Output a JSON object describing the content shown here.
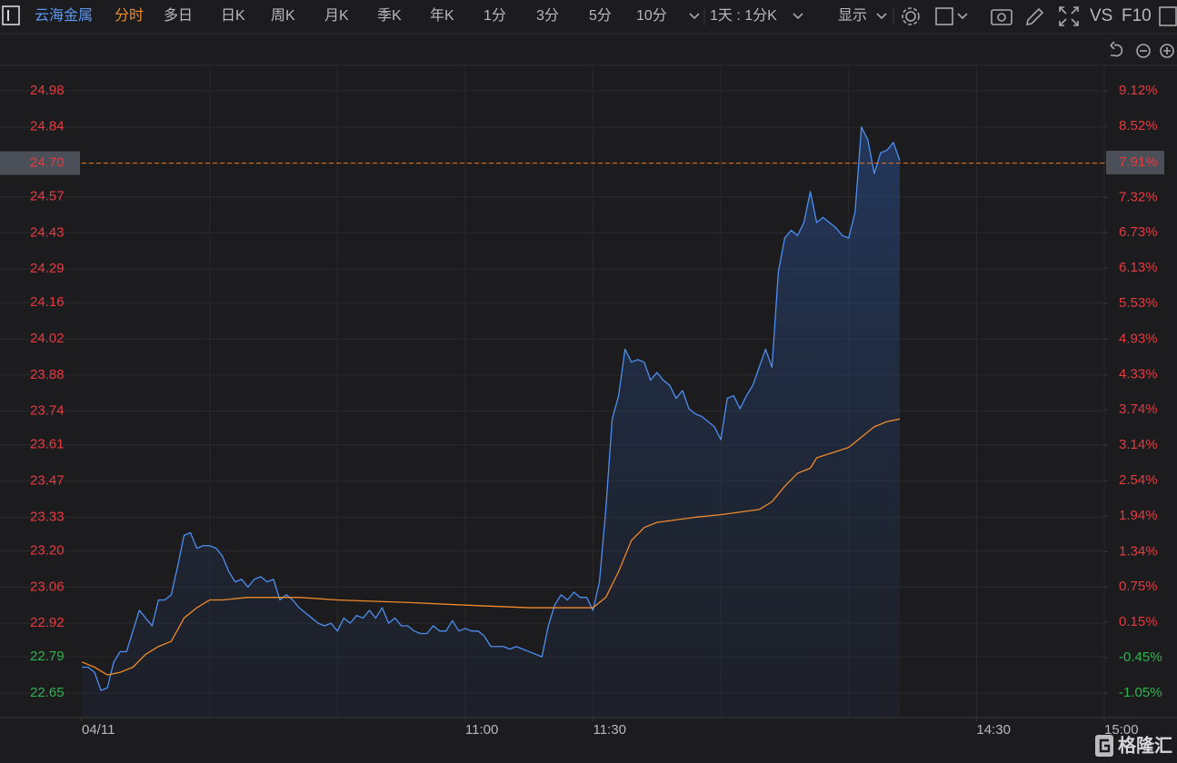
{
  "toolbar": {
    "stock": "云海金属",
    "tabs": [
      "分时",
      "多日",
      "日K",
      "周K",
      "月K",
      "季K",
      "年K",
      "1分",
      "3分",
      "5分",
      "10分"
    ],
    "period": "1天 : 1分K",
    "display": "显示",
    "vs": "VS",
    "f10": "F10"
  },
  "watermark": "格隆汇",
  "chart_data": {
    "type": "line",
    "xlim": [
      0,
      240
    ],
    "xticks": [
      {
        "value": 0,
        "label": "04/11"
      },
      {
        "value": 90,
        "label": "11:00"
      },
      {
        "value": 120,
        "label": "11:30"
      },
      {
        "value": 210,
        "label": "14:30"
      },
      {
        "value": 240,
        "label": "15:00"
      }
    ],
    "xgrid": [
      30,
      60,
      90,
      120,
      150,
      180,
      210,
      240
    ],
    "ylim": [
      22.555,
      25.078
    ],
    "yticks": [
      24.98,
      24.84,
      {
        "value": 24.7,
        "label": "24.70"
      },
      24.57,
      24.43,
      24.29,
      24.16,
      24.02,
      23.88,
      23.74,
      23.61,
      23.47,
      23.33,
      {
        "value": 23.2,
        "label": "23.20"
      },
      23.06,
      22.92,
      22.79,
      22.65
    ],
    "y2lim": [
      -1.46,
      9.55
    ],
    "y2ticks": [
      {
        "value": 9.12,
        "label": "9.12%"
      },
      {
        "value": 8.52,
        "label": "8.52%"
      },
      {
        "value": 7.91,
        "label": "7.91%"
      },
      {
        "value": 7.32,
        "label": "7.32%"
      },
      {
        "value": 6.73,
        "label": "6.73%"
      },
      {
        "value": 6.13,
        "label": "6.13%"
      },
      {
        "value": 5.53,
        "label": "5.53%"
      },
      {
        "value": 4.93,
        "label": "4.93%"
      },
      {
        "value": 4.33,
        "label": "4.33%"
      },
      {
        "value": 3.74,
        "label": "3.74%"
      },
      {
        "value": 3.14,
        "label": "3.14%"
      },
      {
        "value": 2.54,
        "label": "2.54%"
      },
      {
        "value": 1.94,
        "label": "1.94%"
      },
      {
        "value": 1.34,
        "label": "1.34%"
      },
      {
        "value": 0.75,
        "label": "0.75%"
      },
      {
        "value": 0.15,
        "label": "0.15%"
      },
      {
        "value": -0.45,
        "label": "-0.45%"
      },
      {
        "value": -1.05,
        "label": "-1.05%"
      }
    ],
    "up_color": "#e8393f",
    "down_color": "#2fb34e",
    "reference_line": 24.7,
    "reference_color": "#e2762c",
    "grid": true,
    "series": [
      {
        "color": "#4d8ef0",
        "area": true,
        "x": [
          0,
          1.5,
          3,
          4.5,
          6,
          7.5,
          9,
          10.5,
          12,
          13.5,
          15,
          16.5,
          18,
          19.5,
          21,
          22.5,
          24,
          25.5,
          27,
          28.5,
          30,
          31.5,
          33,
          34.5,
          36,
          37.5,
          39,
          40.5,
          42,
          43.5,
          45,
          46.5,
          48,
          49.5,
          51,
          52.5,
          54,
          55.5,
          57,
          58.5,
          60,
          61.5,
          63,
          64.5,
          66,
          67.5,
          69,
          70.5,
          72,
          73.5,
          75,
          76.5,
          78,
          79.5,
          81,
          82.5,
          84,
          85.5,
          87,
          88.5,
          90,
          91.5,
          93,
          94.5,
          96,
          97.5,
          99,
          100.5,
          102,
          103.5,
          105,
          106.5,
          108,
          109.5,
          111,
          112.5,
          114,
          115.5,
          117,
          118.5,
          120,
          121.5,
          123,
          124.5,
          126,
          127.5,
          129,
          130.5,
          132,
          133.5,
          135,
          136.5,
          138,
          139.5,
          141,
          142.5,
          144,
          145.5,
          147,
          148.5,
          150,
          151.5,
          153,
          154.5,
          156,
          157.5,
          159,
          160.5,
          162,
          163.5,
          165,
          166.5,
          168,
          169.5,
          171,
          172.5,
          174,
          175.5,
          177,
          178.5,
          180,
          181.5,
          183,
          184.5,
          186,
          187.5,
          189,
          190.5,
          192
        ],
        "values": [
          22.75,
          22.75,
          22.73,
          22.66,
          22.67,
          22.77,
          22.81,
          22.81,
          22.89,
          22.97,
          22.94,
          22.91,
          23.01,
          23.01,
          23.03,
          23.14,
          23.26,
          23.27,
          23.21,
          23.22,
          23.22,
          23.21,
          23.18,
          23.12,
          23.08,
          23.09,
          23.06,
          23.09,
          23.1,
          23.08,
          23.09,
          23.01,
          23.03,
          23.01,
          22.98,
          22.96,
          22.94,
          22.92,
          22.91,
          22.92,
          22.89,
          22.94,
          22.92,
          22.95,
          22.94,
          22.97,
          22.94,
          22.98,
          22.92,
          22.94,
          22.91,
          22.91,
          22.89,
          22.88,
          22.88,
          22.91,
          22.89,
          22.89,
          22.93,
          22.89,
          22.9,
          22.89,
          22.89,
          22.87,
          22.83,
          22.83,
          22.83,
          22.82,
          22.83,
          22.82,
          22.81,
          22.8,
          22.79,
          22.91,
          22.99,
          23.03,
          23.01,
          23.04,
          23.02,
          23.02,
          22.97,
          23.08,
          23.36,
          23.71,
          23.8,
          23.98,
          23.93,
          23.94,
          23.93,
          23.86,
          23.89,
          23.86,
          23.84,
          23.79,
          23.82,
          23.75,
          23.73,
          23.72,
          23.7,
          23.68,
          23.63,
          23.79,
          23.8,
          23.75,
          23.8,
          23.84,
          23.91,
          23.98,
          23.91,
          24.28,
          24.41,
          24.44,
          24.42,
          24.47,
          24.59,
          24.47,
          24.49,
          24.47,
          24.45,
          24.42,
          24.41,
          24.51,
          24.84,
          24.79,
          24.66,
          24.74,
          24.75,
          24.78,
          24.71
        ]
      },
      {
        "color": "#ef8a2a",
        "area": false,
        "x": [
          0,
          3,
          6,
          9,
          12,
          15,
          18,
          21,
          24,
          27,
          30,
          33,
          39,
          45,
          51,
          60,
          77,
          90,
          105,
          120,
          123,
          126,
          129,
          132,
          135,
          144,
          150,
          159,
          162,
          165,
          168,
          171,
          172.5,
          180,
          183,
          186,
          189,
          192
        ],
        "values": [
          22.77,
          22.75,
          22.72,
          22.73,
          22.75,
          22.8,
          22.83,
          22.85,
          22.94,
          22.98,
          23.01,
          23.01,
          23.02,
          23.02,
          23.02,
          23.01,
          23.0,
          22.99,
          22.98,
          22.98,
          23.02,
          23.12,
          23.24,
          23.29,
          23.31,
          23.33,
          23.34,
          23.36,
          23.39,
          23.45,
          23.5,
          23.52,
          23.56,
          23.6,
          23.64,
          23.68,
          23.7,
          23.71
        ]
      }
    ]
  }
}
